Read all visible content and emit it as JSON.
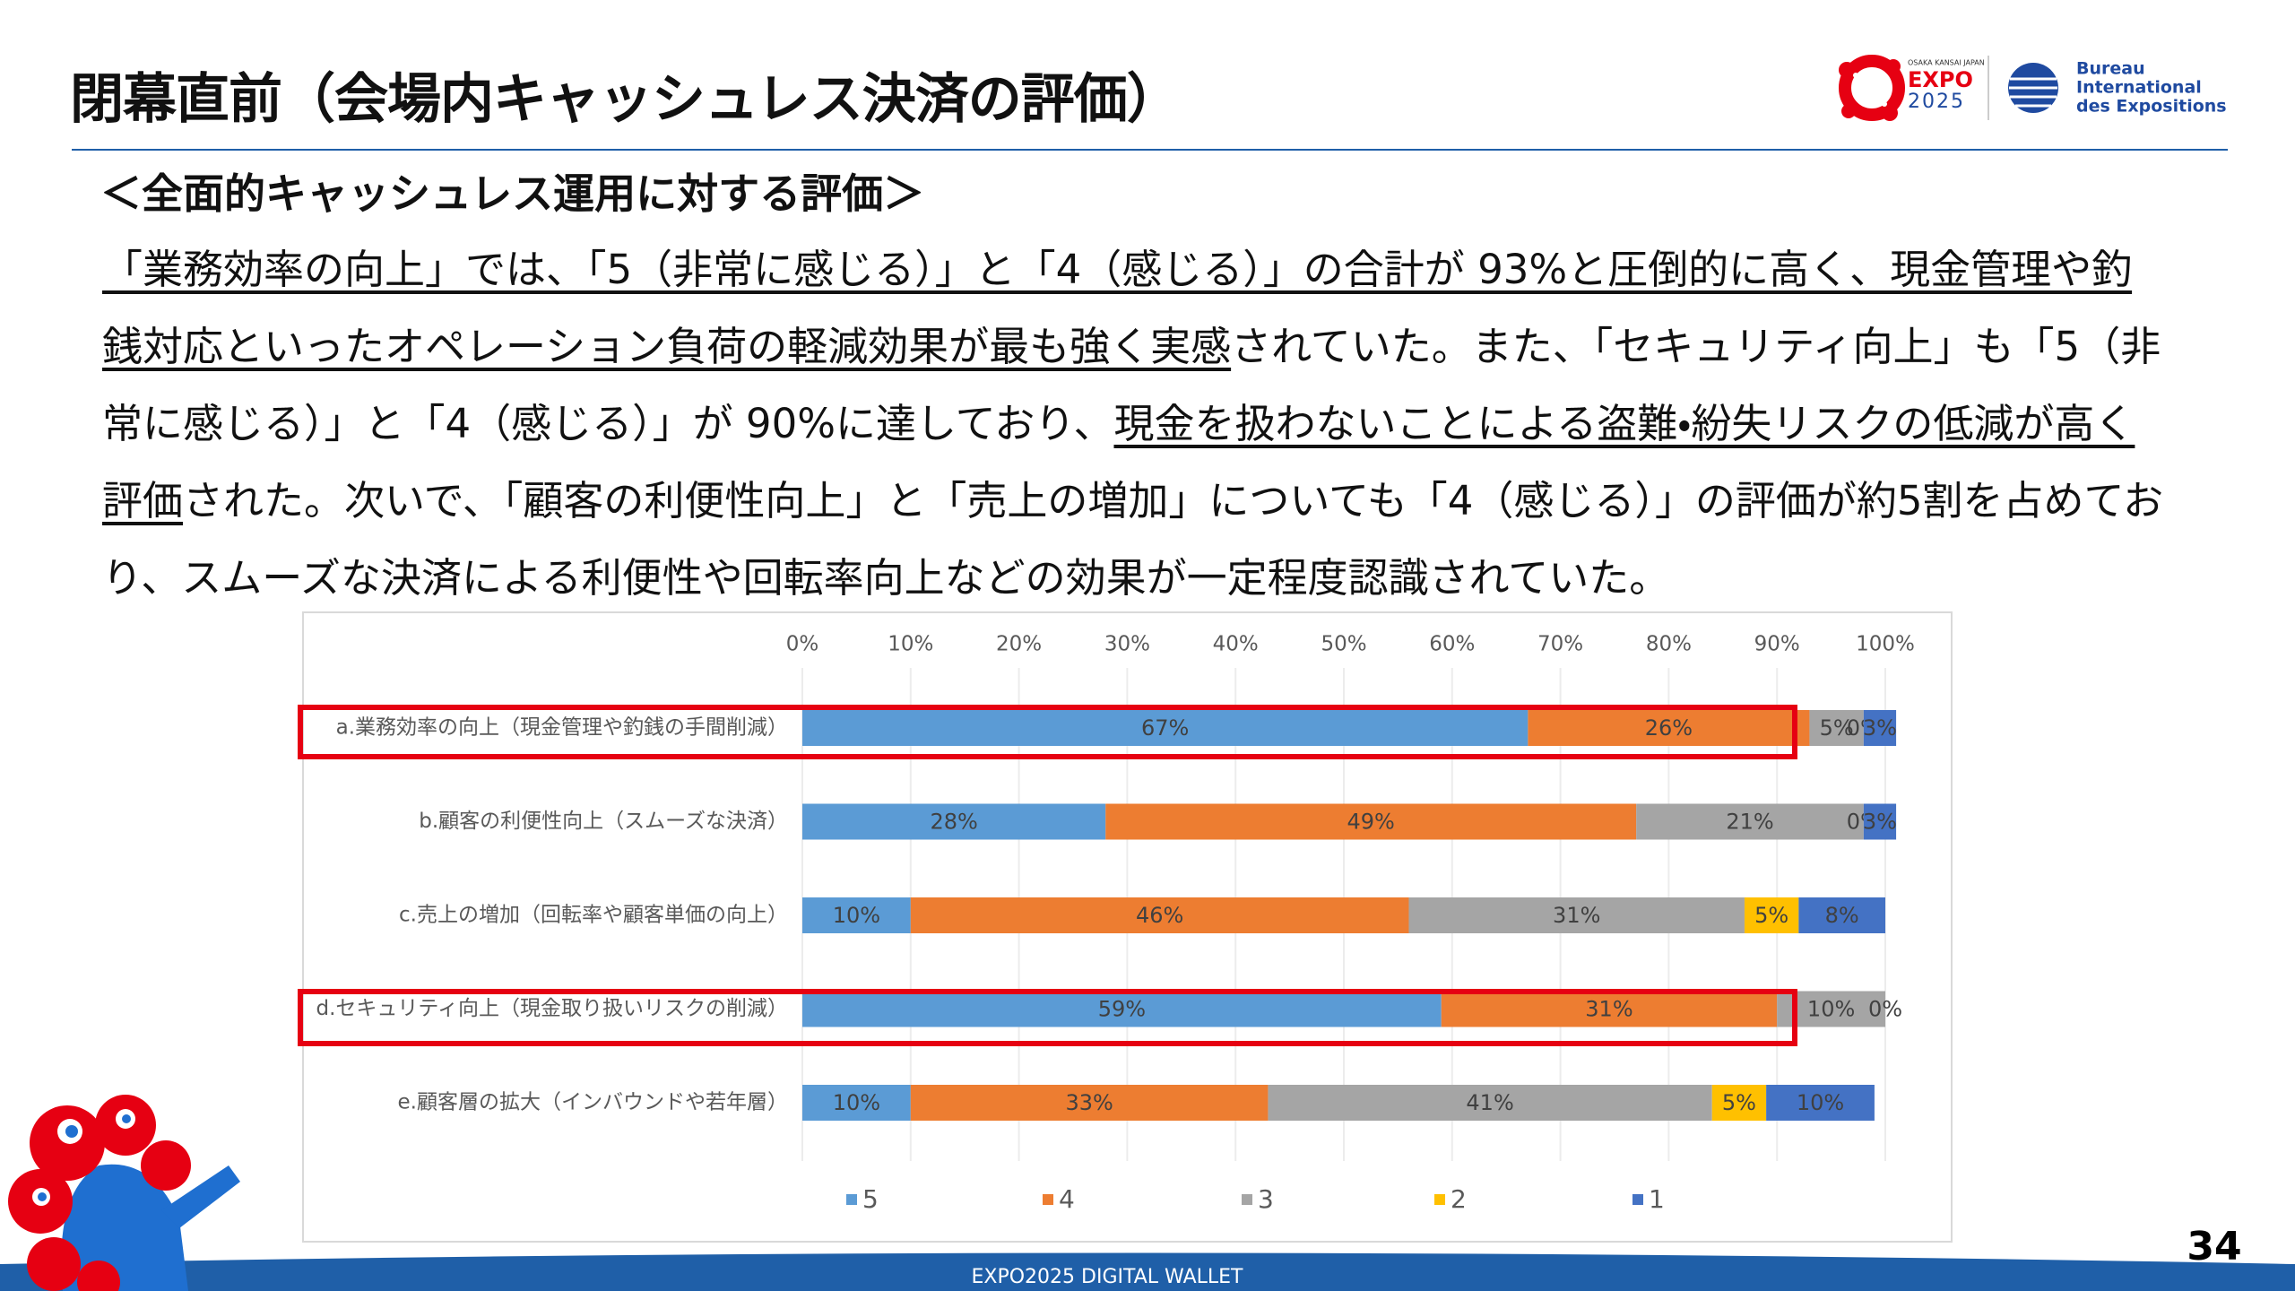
{
  "header": {
    "title": "閉幕直前（会場内キャッシュレス決済の評価）",
    "logo_expo": {
      "small": "OSAKA KANSAI JAPAN",
      "line1": "EXPO",
      "line2": "2025"
    },
    "logo_bie": {
      "line1": "Bureau",
      "line2": "International",
      "line3": "des Expositions"
    }
  },
  "subheading": "＜全面的キャッシュレス運用に対する評価＞",
  "body": {
    "paragraph": [
      {
        "text": "「業務効率の向上」では、「5（非常に感じる）」と「4（感じる）」の合計が 93%と圧倒的に高く、現金管理や釣銭対応といったオペレーション負荷の軽減効果が最も強く実感",
        "underline": true
      },
      {
        "text": "されていた。また、「セキュリティ向上」も「5（非常に感じる）」と「4（感じる）」が 90%に達しており、",
        "underline": false
      },
      {
        "text": "現金を扱わないことによる盗難・紛失リスクの低減が高く評価",
        "underline": true
      },
      {
        "text": "された。次いで、「顧客の利便性向上」と「売上の増加」についても「4（感じる）」の評価が約5割を占めており、スムーズな決済による利便性や回転率向上などの効果が一定程度認識されていた。",
        "underline": false
      }
    ]
  },
  "chart_data": {
    "type": "stacked-barh",
    "categories": [
      "a.業務効率の向上（現金管理や釣銭の手間削減）",
      "b.顧客の利便性向上（スムーズな決済）",
      "c.売上の増加（回転率や顧客単価の向上）",
      "d.セキュリティ向上（現金取り扱いリスクの削減）",
      "e.顧客層の拡大（インバウンドや若年層）"
    ],
    "series": [
      {
        "name": "5",
        "color": "#5b9bd5",
        "values": [
          67,
          28,
          10,
          59,
          10
        ],
        "value_labels": [
          "67%",
          "28%",
          "10%",
          "59%",
          "10%"
        ]
      },
      {
        "name": "4",
        "color": "#ed7d31",
        "values": [
          26,
          49,
          46,
          31,
          33
        ],
        "value_labels": [
          "26%",
          "49%",
          "46%",
          "31%",
          "33%"
        ]
      },
      {
        "name": "3",
        "color": "#a5a5a5",
        "values": [
          5,
          21,
          31,
          10,
          41
        ],
        "value_labels": [
          "5%",
          "21%",
          "31%",
          "10%",
          "41%"
        ]
      },
      {
        "name": "2",
        "color": "#ffc000",
        "values": [
          0,
          0,
          5,
          0,
          5
        ],
        "value_labels": [
          "0%",
          "0%",
          "5%",
          null,
          "5%"
        ]
      },
      {
        "name": "1",
        "color": "#4472c4",
        "values": [
          3,
          3,
          8,
          0,
          10
        ],
        "value_labels": [
          "3%",
          "3%",
          "8%",
          "0%",
          "10%"
        ]
      }
    ],
    "xlim": [
      0,
      100
    ],
    "xticks": [
      {
        "value": 0,
        "label": "0%"
      },
      {
        "value": 10,
        "label": "10%"
      },
      {
        "value": 20,
        "label": "20%"
      },
      {
        "value": 30,
        "label": "30%"
      },
      {
        "value": 40,
        "label": "40%"
      },
      {
        "value": 50,
        "label": "50%"
      },
      {
        "value": 60,
        "label": "60%"
      },
      {
        "value": 70,
        "label": "70%"
      },
      {
        "value": 80,
        "label": "80%"
      },
      {
        "value": 90,
        "label": "90%"
      },
      {
        "value": 100,
        "label": "100%"
      }
    ],
    "grid": true,
    "legend": "bottom"
  },
  "footer": {
    "text": "EXPO2025 DIGITAL WALLET",
    "page": "34"
  }
}
